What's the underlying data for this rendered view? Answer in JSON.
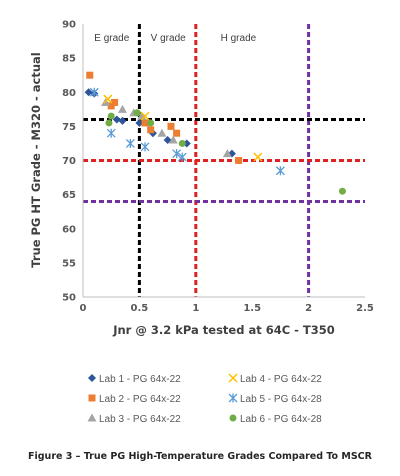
{
  "chart_data": {
    "type": "scatter",
    "xlabel": "Jnr @ 3.2 kPa tested at 64C - T350",
    "ylabel": "True PG HT Grade - M320 - actual",
    "caption": "Figure 3 – True PG High-Temperature Grades Compared To MSCR",
    "xlim": [
      0,
      2.5
    ],
    "ylim": [
      50,
      90
    ],
    "xticks": [
      0,
      0.5,
      1,
      1.5,
      2,
      2.5
    ],
    "xtick_labels": [
      "0",
      "0.5",
      "1",
      "1.5",
      "2",
      "2.5"
    ],
    "yticks": [
      50,
      55,
      60,
      65,
      70,
      75,
      80,
      85,
      90
    ],
    "ytick_labels": [
      "50",
      "55",
      "60",
      "65",
      "70",
      "75",
      "80",
      "85",
      "90"
    ],
    "grid": false,
    "legend_position": "bottom",
    "region_labels": [
      {
        "text": "E grade",
        "x": 0.1,
        "y": 87.5
      },
      {
        "text": "V grade",
        "x": 0.6,
        "y": 87.5
      },
      {
        "text": "H grade",
        "x": 1.22,
        "y": 87.5
      }
    ],
    "reference_lines": [
      {
        "orientation": "vertical",
        "value": 0.5,
        "color": "#000000"
      },
      {
        "orientation": "vertical",
        "value": 1.0,
        "color": "#e02020"
      },
      {
        "orientation": "vertical",
        "value": 2.0,
        "color": "#7030a0"
      },
      {
        "orientation": "horizontal",
        "value": 76,
        "color": "#000000"
      },
      {
        "orientation": "horizontal",
        "value": 70,
        "color": "#e02020"
      },
      {
        "orientation": "horizontal",
        "value": 64,
        "color": "#7030a0"
      }
    ],
    "series": [
      {
        "name": "Lab 1 - PG 64x-22",
        "marker": "diamond",
        "color": "#2e5597",
        "points": [
          [
            0.05,
            80
          ],
          [
            0.1,
            79.8
          ],
          [
            0.3,
            76
          ],
          [
            0.35,
            75.8
          ],
          [
            0.5,
            75.5
          ],
          [
            0.62,
            74
          ],
          [
            0.75,
            73
          ],
          [
            0.92,
            72.5
          ],
          [
            1.32,
            71
          ]
        ]
      },
      {
        "name": "Lab 2 - PG 64x-22",
        "marker": "square",
        "color": "#ed7d31",
        "points": [
          [
            0.06,
            82.5
          ],
          [
            0.25,
            78
          ],
          [
            0.28,
            78.5
          ],
          [
            0.55,
            75.5
          ],
          [
            0.6,
            74.5
          ],
          [
            0.78,
            75
          ],
          [
            0.83,
            74
          ],
          [
            1.38,
            70
          ]
        ]
      },
      {
        "name": "Lab 3 - PG 64x-22",
        "marker": "triangle",
        "color": "#a5a5a5",
        "points": [
          [
            0.2,
            78.5
          ],
          [
            0.35,
            77.5
          ],
          [
            0.45,
            77
          ],
          [
            0.52,
            76.5
          ],
          [
            0.7,
            74
          ],
          [
            0.8,
            73
          ],
          [
            1.28,
            71
          ]
        ]
      },
      {
        "name": "Lab 4 - PG 64x-22",
        "marker": "x",
        "color": "#ffc000",
        "points": [
          [
            0.22,
            79
          ],
          [
            0.55,
            76.5
          ],
          [
            1.55,
            70.5
          ]
        ]
      },
      {
        "name": "Lab 5 - PG 64x-28",
        "marker": "star",
        "color": "#5b9bd5",
        "points": [
          [
            0.1,
            80
          ],
          [
            0.25,
            74
          ],
          [
            0.42,
            72.5
          ],
          [
            0.55,
            72
          ],
          [
            0.83,
            71
          ],
          [
            0.88,
            70.5
          ],
          [
            1.75,
            68.5
          ]
        ]
      },
      {
        "name": "Lab 6 - PG 64x-28",
        "marker": "circle",
        "color": "#70ad47",
        "points": [
          [
            0.23,
            75.5
          ],
          [
            0.25,
            76.5
          ],
          [
            0.48,
            77
          ],
          [
            0.6,
            75.5
          ],
          [
            0.88,
            72.5
          ],
          [
            2.3,
            65.5
          ]
        ]
      }
    ]
  }
}
